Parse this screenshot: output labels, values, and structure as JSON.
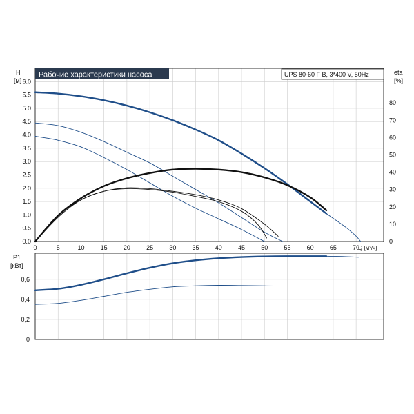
{
  "title": "Рабочие характеристики насоса",
  "model_label": "UPS 80-60 F B, 3*400 V, 50Hz",
  "colors": {
    "title_bg": "#2b3a4f",
    "title_fg": "#ffffff",
    "grid": "#cccccc",
    "axis": "#333333",
    "curve_blue": "#1f4e89",
    "curve_black": "#111111"
  },
  "chart_data": [
    {
      "type": "line",
      "name": "head",
      "x_axis": {
        "label": "Q [м³/ч]",
        "range": [
          0,
          76
        ],
        "ticks": [
          0,
          5,
          10,
          15,
          20,
          25,
          30,
          35,
          40,
          45,
          50,
          55,
          60,
          65,
          70
        ]
      },
      "y_axis": {
        "label_line1": "H",
        "label_line2": "[м]",
        "range": [
          0,
          6.5
        ],
        "ticks": [
          0.0,
          0.5,
          1.0,
          1.5,
          2.0,
          2.5,
          3.0,
          3.5,
          4.0,
          4.5,
          5.0,
          5.5,
          6.0
        ],
        "tick_labels": [
          "0.0",
          "0.5",
          "1.0",
          "1.5",
          "2.0",
          "2.5",
          "3.0",
          "3.5",
          "4.0",
          "4.5",
          "5.0",
          "5.5",
          "6.0"
        ]
      },
      "y2_axis": {
        "label_line1": "eta",
        "label_line2": "[%]",
        "range": [
          0,
          100
        ],
        "ticks": [
          0,
          10,
          20,
          30,
          40,
          50,
          60,
          70,
          80
        ]
      },
      "grid": true,
      "series": [
        {
          "role": "H-speed-1",
          "style": "thick-blue",
          "x": [
            0,
            5,
            10,
            15,
            20,
            25,
            30,
            35,
            40,
            45,
            50,
            55,
            60,
            63.5
          ],
          "y": [
            5.6,
            5.55,
            5.45,
            5.3,
            5.1,
            4.85,
            4.55,
            4.2,
            3.8,
            3.3,
            2.75,
            2.15,
            1.5,
            1.05
          ]
        },
        {
          "role": "H-speed-1-ext",
          "style": "thin-blue",
          "x": [
            63.5,
            66,
            68,
            70,
            71
          ],
          "y": [
            1.05,
            0.75,
            0.5,
            0.2,
            0.0
          ]
        },
        {
          "role": "H-speed-2",
          "style": "thin-blue",
          "x": [
            0,
            5,
            10,
            15,
            20,
            25,
            30,
            35,
            40,
            45,
            50,
            54
          ],
          "y": [
            4.45,
            4.35,
            4.1,
            3.75,
            3.35,
            2.95,
            2.45,
            1.95,
            1.45,
            0.9,
            0.35,
            0.0
          ]
        },
        {
          "role": "H-speed-3",
          "style": "thin-blue",
          "x": [
            0,
            5,
            10,
            15,
            20,
            25,
            30,
            35,
            40,
            45,
            50
          ],
          "y": [
            3.95,
            3.8,
            3.55,
            3.15,
            2.7,
            2.2,
            1.7,
            1.25,
            0.85,
            0.45,
            0.0
          ]
        },
        {
          "role": "eta-speed-1",
          "style": "thick-black",
          "y_axis": "y2",
          "x": [
            0,
            5,
            10,
            15,
            20,
            25,
            30,
            35,
            40,
            45,
            50,
            55,
            60,
            63.5
          ],
          "y": [
            0,
            15,
            25,
            32,
            36.5,
            39.5,
            41.5,
            42,
            41.5,
            40,
            37,
            32.5,
            25.5,
            18
          ]
        },
        {
          "role": "eta-speed-2",
          "style": "thin-black",
          "y_axis": "y2",
          "x": [
            0,
            5,
            10,
            15,
            20,
            25,
            30,
            35,
            40,
            45,
            50,
            53
          ],
          "y": [
            0,
            15,
            24,
            29,
            31,
            30.5,
            29,
            27,
            24,
            19,
            10,
            3
          ]
        },
        {
          "role": "eta-speed-3",
          "style": "thin-black",
          "y_axis": "y2",
          "x": [
            0,
            5,
            10,
            15,
            20,
            25,
            30,
            35,
            40,
            45,
            48.5,
            50.5
          ],
          "y": [
            0,
            14,
            24,
            29,
            30.5,
            30,
            28.5,
            26,
            23,
            17.5,
            10,
            2
          ]
        }
      ]
    },
    {
      "type": "line",
      "name": "power",
      "x_axis": {
        "range": [
          0,
          76
        ]
      },
      "y_axis": {
        "label_line1": "P1",
        "label_line2": "[кВт]",
        "range": [
          0,
          0.86
        ],
        "ticks": [
          0,
          0.2,
          0.4,
          0.6
        ],
        "tick_labels": [
          "0",
          "0,2",
          "0,4",
          "0,6"
        ]
      },
      "grid": true,
      "series": [
        {
          "role": "P1-speed-1",
          "style": "thick-blue",
          "x": [
            0,
            5,
            10,
            15,
            20,
            25,
            30,
            35,
            40,
            45,
            50,
            55,
            60,
            63.5
          ],
          "y": [
            0.49,
            0.505,
            0.545,
            0.6,
            0.66,
            0.715,
            0.76,
            0.79,
            0.81,
            0.822,
            0.828,
            0.83,
            0.83,
            0.83
          ]
        },
        {
          "role": "P1-speed-1-ext",
          "style": "thin-blue",
          "x": [
            63.5,
            67,
            70.5
          ],
          "y": [
            0.83,
            0.828,
            0.82
          ]
        },
        {
          "role": "P1-speed-2",
          "style": "thin-blue",
          "x": [
            0,
            5,
            10,
            15,
            20,
            25,
            30,
            35,
            40,
            45,
            50,
            53.5
          ],
          "y": [
            0.35,
            0.36,
            0.39,
            0.43,
            0.47,
            0.5,
            0.525,
            0.535,
            0.54,
            0.538,
            0.535,
            0.533
          ]
        }
      ]
    }
  ]
}
